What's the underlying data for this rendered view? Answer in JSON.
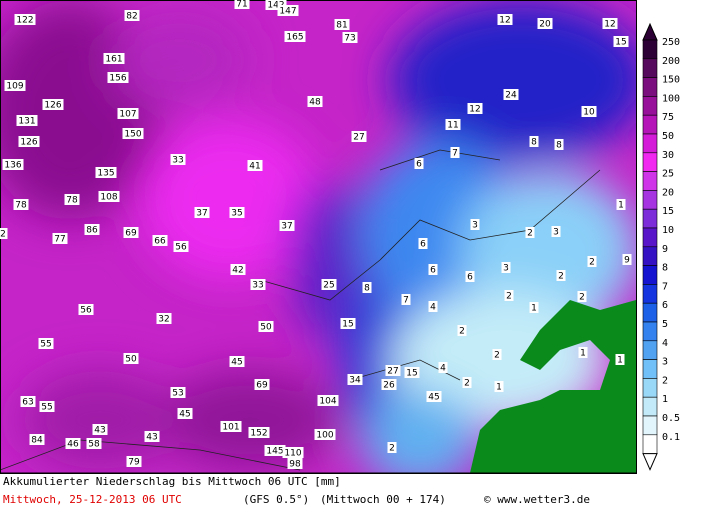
{
  "map": {
    "labels": [
      122,
      82,
      71,
      142,
      147,
      81,
      73,
      165,
      12,
      20,
      12,
      15,
      161,
      156,
      109,
      24,
      48,
      126,
      107,
      12,
      10,
      131,
      11,
      150,
      27,
      126,
      8,
      8,
      7,
      136,
      33,
      41,
      6,
      135,
      78,
      78,
      108,
      37,
      35,
      1,
      3,
      2,
      3,
      37,
      86,
      69,
      77,
      66,
      56,
      9,
      2,
      6,
      2,
      6,
      6,
      3,
      2,
      42,
      33,
      25,
      8,
      2,
      2,
      7,
      4,
      1,
      56,
      32,
      50,
      15,
      2,
      55,
      1,
      1,
      50,
      45,
      27,
      15,
      4,
      2,
      34,
      26,
      69,
      2,
      1,
      53,
      45,
      63,
      55,
      104,
      45,
      101,
      152,
      100,
      43,
      43,
      84,
      46,
      58,
      2,
      145,
      110,
      98,
      79
    ]
  },
  "legend": {
    "levels": [
      {
        "label": "250",
        "color": "#2c0034"
      },
      {
        "label": "200",
        "color": "#560a5c"
      },
      {
        "label": "150",
        "color": "#7a0e7e"
      },
      {
        "label": "100",
        "color": "#96109a"
      },
      {
        "label": "75",
        "color": "#b414b8"
      },
      {
        "label": "50",
        "color": "#d41cd8"
      },
      {
        "label": "30",
        "color": "#f028f0"
      },
      {
        "label": "25",
        "color": "#d034e8"
      },
      {
        "label": "20",
        "color": "#a634e0"
      },
      {
        "label": "15",
        "color": "#7c2cd8"
      },
      {
        "label": "10",
        "color": "#5814c8"
      },
      {
        "label": "9",
        "color": "#3412c4"
      },
      {
        "label": "8",
        "color": "#1414d0"
      },
      {
        "label": "7",
        "color": "#1434e0"
      },
      {
        "label": "6",
        "color": "#1c60e8"
      },
      {
        "label": "5",
        "color": "#3482f0"
      },
      {
        "label": "4",
        "color": "#52a2f2"
      },
      {
        "label": "3",
        "color": "#72c0f8"
      },
      {
        "label": "2",
        "color": "#9ad8f8"
      },
      {
        "label": "1",
        "color": "#c2eaf8"
      },
      {
        "label": "0.5",
        "color": "#e2f4fc"
      },
      {
        "label": "0.1",
        "color": "#ffffff"
      }
    ]
  },
  "footer": {
    "title": "Akkumulierter Niederschlag bis Mittwoch 06 UTC [mm]",
    "date": "Mittwoch, 25-12-2013  06 UTC",
    "model": "(GFS 0.5°)",
    "run": "(Mittwoch 00 + 174)",
    "credit": "© www.wetter3.de"
  }
}
